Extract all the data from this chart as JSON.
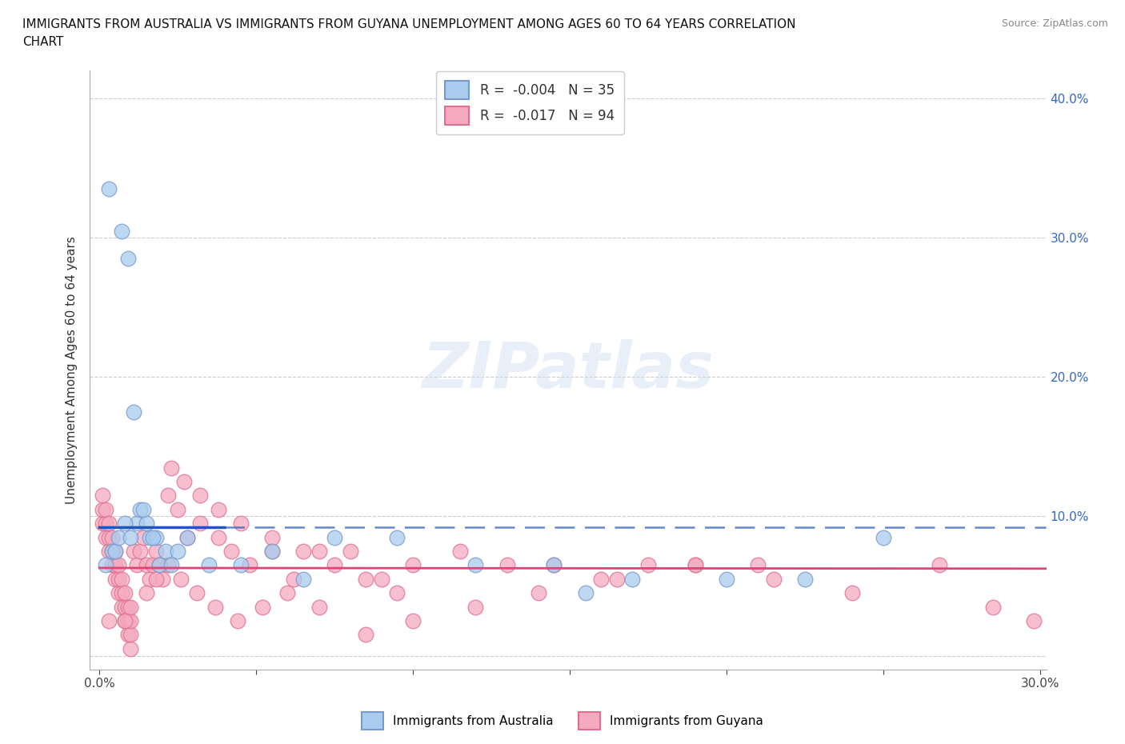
{
  "title_line1": "IMMIGRANTS FROM AUSTRALIA VS IMMIGRANTS FROM GUYANA UNEMPLOYMENT AMONG AGES 60 TO 64 YEARS CORRELATION",
  "title_line2": "CHART",
  "source": "Source: ZipAtlas.com",
  "ylabel": "Unemployment Among Ages 60 to 64 years",
  "xlim": [
    -0.003,
    0.302
  ],
  "ylim": [
    -0.01,
    0.42
  ],
  "xticks": [
    0.0,
    0.05,
    0.1,
    0.15,
    0.2,
    0.25,
    0.3
  ],
  "xticklabels": [
    "0.0%",
    "",
    "",
    "",
    "",
    "",
    "30.0%"
  ],
  "yticks": [
    0.0,
    0.1,
    0.2,
    0.3,
    0.4
  ],
  "yticklabels_right": [
    "",
    "10.0%",
    "20.0%",
    "30.0%",
    "40.0%"
  ],
  "grid_color": "#cccccc",
  "background_color": "#ffffff",
  "watermark": "ZIPatlas",
  "australia_color": "#aaccee",
  "australia_edge": "#7799cc",
  "guyana_color": "#f5aabf",
  "guyana_edge": "#e07090",
  "australia_R": -0.004,
  "australia_N": 35,
  "guyana_R": -0.017,
  "guyana_N": 94,
  "australia_line_color": "#2255bb",
  "guyana_line_color": "#dd4477",
  "aus_line_y": 0.092,
  "guy_line_y": 0.063,
  "australia_x": [
    0.003,
    0.007,
    0.009,
    0.011,
    0.012,
    0.013,
    0.015,
    0.016,
    0.018,
    0.002,
    0.004,
    0.005,
    0.006,
    0.008,
    0.01,
    0.014,
    0.017,
    0.019,
    0.021,
    0.023,
    0.025,
    0.028,
    0.035,
    0.045,
    0.055,
    0.065,
    0.075,
    0.095,
    0.12,
    0.145,
    0.17,
    0.2,
    0.225,
    0.25,
    0.155
  ],
  "australia_y": [
    0.335,
    0.305,
    0.285,
    0.175,
    0.095,
    0.105,
    0.095,
    0.085,
    0.085,
    0.065,
    0.075,
    0.075,
    0.085,
    0.095,
    0.085,
    0.105,
    0.085,
    0.065,
    0.075,
    0.065,
    0.075,
    0.085,
    0.065,
    0.065,
    0.075,
    0.055,
    0.085,
    0.085,
    0.065,
    0.065,
    0.055,
    0.055,
    0.055,
    0.085,
    0.045
  ],
  "guyana_x": [
    0.001,
    0.002,
    0.003,
    0.004,
    0.005,
    0.006,
    0.007,
    0.008,
    0.009,
    0.01,
    0.001,
    0.002,
    0.003,
    0.004,
    0.005,
    0.006,
    0.007,
    0.008,
    0.009,
    0.01,
    0.011,
    0.012,
    0.013,
    0.014,
    0.015,
    0.016,
    0.017,
    0.018,
    0.019,
    0.02,
    0.001,
    0.002,
    0.003,
    0.004,
    0.005,
    0.006,
    0.007,
    0.008,
    0.009,
    0.01,
    0.022,
    0.025,
    0.028,
    0.032,
    0.038,
    0.042,
    0.048,
    0.055,
    0.062,
    0.07,
    0.08,
    0.09,
    0.1,
    0.115,
    0.13,
    0.145,
    0.16,
    0.175,
    0.19,
    0.21,
    0.023,
    0.027,
    0.032,
    0.038,
    0.045,
    0.055,
    0.065,
    0.075,
    0.085,
    0.095,
    0.015,
    0.018,
    0.022,
    0.026,
    0.031,
    0.037,
    0.044,
    0.052,
    0.06,
    0.07,
    0.085,
    0.1,
    0.12,
    0.14,
    0.165,
    0.19,
    0.215,
    0.24,
    0.268,
    0.285,
    0.298,
    0.01,
    0.008,
    0.003
  ],
  "guyana_y": [
    0.095,
    0.085,
    0.075,
    0.065,
    0.055,
    0.045,
    0.035,
    0.025,
    0.015,
    0.005,
    0.105,
    0.095,
    0.085,
    0.075,
    0.065,
    0.055,
    0.045,
    0.035,
    0.025,
    0.015,
    0.075,
    0.065,
    0.075,
    0.085,
    0.065,
    0.055,
    0.065,
    0.075,
    0.065,
    0.055,
    0.115,
    0.105,
    0.095,
    0.085,
    0.075,
    0.065,
    0.055,
    0.045,
    0.035,
    0.025,
    0.115,
    0.105,
    0.085,
    0.095,
    0.085,
    0.075,
    0.065,
    0.075,
    0.055,
    0.075,
    0.075,
    0.055,
    0.065,
    0.075,
    0.065,
    0.065,
    0.055,
    0.065,
    0.065,
    0.065,
    0.135,
    0.125,
    0.115,
    0.105,
    0.095,
    0.085,
    0.075,
    0.065,
    0.055,
    0.045,
    0.045,
    0.055,
    0.065,
    0.055,
    0.045,
    0.035,
    0.025,
    0.035,
    0.045,
    0.035,
    0.015,
    0.025,
    0.035,
    0.045,
    0.055,
    0.065,
    0.055,
    0.045,
    0.065,
    0.035,
    0.025,
    0.035,
    0.025,
    0.025
  ]
}
